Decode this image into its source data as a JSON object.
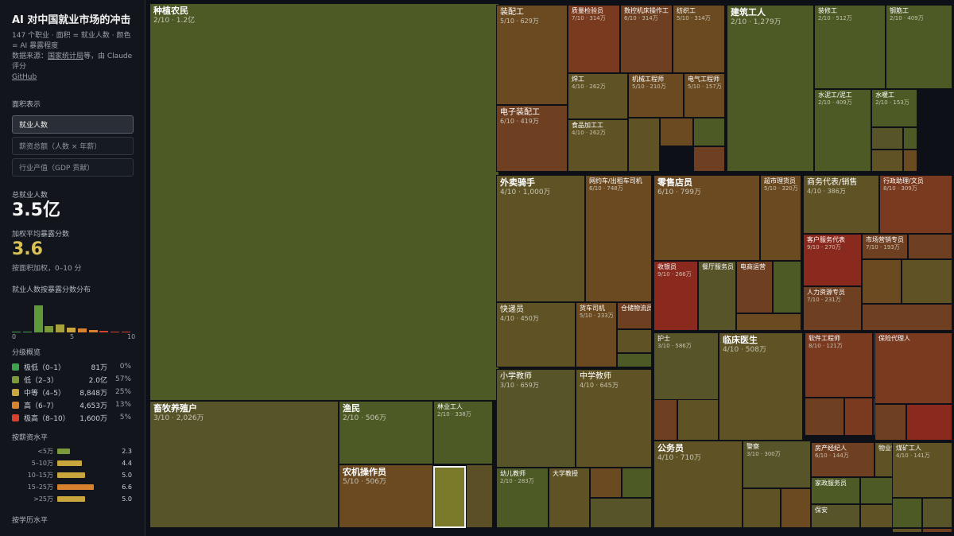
{
  "sidebar": {
    "title": "AI 对中国就业市场的冲击",
    "desc1": "147 个职业 · 面积 = 就业人数 · 颜色 = AI 暴露程度",
    "source_prefix": "数据来源：",
    "source_link": "国家统计局",
    "source_suffix": "等，由 Claude 评分",
    "github": "GitHub",
    "area_label": "面积表示",
    "modes": [
      "就业人数",
      "薪资总额（人数 × 年薪）",
      "行业产值（GDP 贡献）"
    ],
    "total_label": "总就业人数",
    "total_value": "3.5亿",
    "avg_label": "加权平均暴露分数",
    "avg_value": "3.6",
    "avg_note": "按面积加权，0–10 分",
    "hist_label": "就业人数按暴露分数分布",
    "hist_ticks": [
      "0",
      "5",
      "10"
    ],
    "levels_label": "分级概览",
    "levels": [
      {
        "name": "极低（0–1）",
        "count": "81万",
        "pct": "0%",
        "color": "#3fa34d"
      },
      {
        "name": "低（2–3）",
        "count": "2.0亿",
        "pct": "57%",
        "color": "#7a9a3a"
      },
      {
        "name": "中等（4–5）",
        "count": "8,848万",
        "pct": "25%",
        "color": "#c9a63d"
      },
      {
        "name": "高（6–7）",
        "count": "4,653万",
        "pct": "13%",
        "color": "#d8822f"
      },
      {
        "name": "极高（8–10）",
        "count": "1,600万",
        "pct": "5%",
        "color": "#d9412f"
      }
    ],
    "salary_label": "按薪资水平",
    "salary": [
      {
        "label": "<5万",
        "value": "2.3",
        "score": 2.3,
        "color": "#7a9a3a"
      },
      {
        "label": "5–10万",
        "value": "4.4",
        "score": 4.4,
        "color": "#c9a63d"
      },
      {
        "label": "10–15万",
        "value": "5.0",
        "score": 5.0,
        "color": "#c9a63d"
      },
      {
        "label": "15–25万",
        "value": "6.6",
        "score": 6.6,
        "color": "#d8822f"
      },
      {
        "label": ">25万",
        "value": "5.0",
        "score": 5.0,
        "color": "#c9a63d"
      }
    ],
    "edu_label": "按学历水平"
  },
  "histogram": [
    {
      "score": 0,
      "share": 0.002,
      "color": "#3fa34d"
    },
    {
      "score": 1,
      "share": 0.01,
      "color": "#3fa34d"
    },
    {
      "score": 2,
      "share": 0.85,
      "color": "#5f9a3a"
    },
    {
      "score": 3,
      "share": 0.2,
      "color": "#7a9a3a"
    },
    {
      "score": 4,
      "share": 0.24,
      "color": "#a8a03a"
    },
    {
      "score": 5,
      "share": 0.15,
      "color": "#c9a63d"
    },
    {
      "score": 6,
      "share": 0.13,
      "color": "#d8822f"
    },
    {
      "score": 7,
      "share": 0.08,
      "color": "#d8822f"
    },
    {
      "score": 8,
      "share": 0.05,
      "color": "#d9412f"
    },
    {
      "score": 9,
      "share": 0.03,
      "color": "#d9412f"
    },
    {
      "score": 10,
      "share": 0.008,
      "color": "#d9412f"
    }
  ],
  "tiles": [
    {
      "name": "种植农民",
      "meta": "2/10 · 1.2亿",
      "color": "#4d5a25",
      "size": "L"
    },
    {
      "name": "畜牧养殖户",
      "meta": "3/10 · 2,026万",
      "color": "#57542a",
      "size": "L"
    },
    {
      "name": "渔民",
      "meta": "2/10 · 506万",
      "color": "#4d5a25",
      "size": "L"
    },
    {
      "name": "林业工人",
      "meta": "2/10 · 338万",
      "color": "#4d5a25"
    },
    {
      "name": "农机操作员",
      "meta": "5/10 · 506万",
      "color": "#6b4a22",
      "size": "L"
    },
    {
      "name": "",
      "meta": "",
      "color": "#7a7a2a",
      "selected": true
    },
    {
      "name": "",
      "meta": "",
      "color": "#5a4f25"
    },
    {
      "name": "装配工",
      "meta": "5/10 · 629万",
      "color": "#6b4a22",
      "size": "M"
    },
    {
      "name": "质量检验员",
      "meta": "7/10 · 314万",
      "color": "#7a3a1f"
    },
    {
      "name": "数控机床操作工",
      "meta": "6/10 · 314万",
      "color": "#6e3f20"
    },
    {
      "name": "纺织工",
      "meta": "5/10 · 314万",
      "color": "#6b4a22"
    },
    {
      "name": "焊工",
      "meta": "4/10 · 262万",
      "color": "#5f5224"
    },
    {
      "name": "机械工程师",
      "meta": "5/10 · 210万",
      "color": "#6b4a22"
    },
    {
      "name": "电气工程师",
      "meta": "5/10 · 157万",
      "color": "#6b4a22"
    },
    {
      "name": "电子装配工",
      "meta": "6/10 · 419万",
      "color": "#6e3f20",
      "size": "M"
    },
    {
      "name": "食品加工工",
      "meta": "4/10 · 262万",
      "color": "#5f5224"
    },
    {
      "name": "",
      "meta": "",
      "color": "#5f5224"
    },
    {
      "name": "",
      "meta": "",
      "color": "#6b4a22"
    },
    {
      "name": "",
      "meta": "",
      "color": "#4d5a25"
    },
    {
      "name": "",
      "meta": "",
      "color": "#6e3f20"
    },
    {
      "name": "建筑工人",
      "meta": "2/10 · 1,279万",
      "color": "#4d5a25",
      "size": "L"
    },
    {
      "name": "装修工",
      "meta": "2/10 · 512万",
      "color": "#4d5a25"
    },
    {
      "name": "钢筋工",
      "meta": "2/10 · 409万",
      "color": "#4d5a25"
    },
    {
      "name": "水泥工/泥工",
      "meta": "2/10 · 409万",
      "color": "#4d5a25"
    },
    {
      "name": "水暖工",
      "meta": "2/10 · 153万",
      "color": "#4d5a25"
    },
    {
      "name": "",
      "meta": "",
      "color": "#57542a"
    },
    {
      "name": "",
      "meta": "",
      "color": "#4d5a25"
    },
    {
      "name": "",
      "meta": "",
      "color": "#5f5224"
    },
    {
      "name": "",
      "meta": "",
      "color": "#6b4a22"
    },
    {
      "name": "外卖骑手",
      "meta": "4/10 · 1,000万",
      "color": "#5f5224",
      "size": "L"
    },
    {
      "name": "网约车/出租车司机",
      "meta": "6/10 · 748万",
      "color": "#6b4a22"
    },
    {
      "name": "快递员",
      "meta": "4/10 · 450万",
      "color": "#5f5224",
      "size": "M"
    },
    {
      "name": "货车司机",
      "meta": "5/10 · 233万",
      "color": "#6b4a22"
    },
    {
      "name": "仓储物流员",
      "meta": "",
      "color": "#6e3f20"
    },
    {
      "name": "",
      "meta": "",
      "color": "#5f5224"
    },
    {
      "name": "",
      "meta": "",
      "color": "#4d5a25"
    },
    {
      "name": "零售店员",
      "meta": "6/10 · 799万",
      "color": "#6b4a22",
      "size": "L"
    },
    {
      "name": "超市理货员",
      "meta": "5/10 · 320万",
      "color": "#6b4a22"
    },
    {
      "name": "收银员",
      "meta": "9/10 · 266万",
      "color": "#8a2a1e"
    },
    {
      "name": "餐厅服务员",
      "meta": "",
      "color": "#57542a"
    },
    {
      "name": "电商运营",
      "meta": "",
      "color": "#6e3f20"
    },
    {
      "name": "",
      "meta": "",
      "color": "#4d5a25"
    },
    {
      "name": "",
      "meta": "",
      "color": "#6b4a22"
    },
    {
      "name": "商务代表/销售",
      "meta": "4/10 · 386万",
      "color": "#5f5224",
      "size": "M"
    },
    {
      "name": "行政助理/文员",
      "meta": "8/10 · 309万",
      "color": "#7a3a1f"
    },
    {
      "name": "客户服务代表",
      "meta": "9/10 · 270万",
      "color": "#8a2a1e"
    },
    {
      "name": "市场营销专员",
      "meta": "7/10 · 193万",
      "color": "#6e3f20"
    },
    {
      "name": "",
      "meta": "",
      "color": "#6e3f20"
    },
    {
      "name": "人力资源专员",
      "meta": "7/10 · 231万",
      "color": "#6e3f20"
    },
    {
      "name": "",
      "meta": "",
      "color": "#6b4a22"
    },
    {
      "name": "",
      "meta": "",
      "color": "#5f5224"
    },
    {
      "name": "",
      "meta": "",
      "color": "#6e3f20"
    },
    {
      "name": "小学教师",
      "meta": "3/10 · 659万",
      "color": "#57542a",
      "size": "M"
    },
    {
      "name": "中学教师",
      "meta": "4/10 · 645万",
      "color": "#5f5224",
      "size": "M"
    },
    {
      "name": "幼儿教师",
      "meta": "2/10 · 283万",
      "color": "#4d5a25"
    },
    {
      "name": "大学教授",
      "meta": "",
      "color": "#5f5224"
    },
    {
      "name": "",
      "meta": "",
      "color": "#6b4a22"
    },
    {
      "name": "",
      "meta": "",
      "color": "#4d5a25"
    },
    {
      "name": "",
      "meta": "",
      "color": "#57542a"
    },
    {
      "name": "护士",
      "meta": "3/10 · 586万",
      "color": "#57542a"
    },
    {
      "name": "临床医生",
      "meta": "4/10 · 508万",
      "color": "#5f5224",
      "size": "L"
    },
    {
      "name": "",
      "meta": "",
      "color": "#6b4a22"
    },
    {
      "name": "",
      "meta": "",
      "color": "#4d5a25"
    },
    {
      "name": "",
      "meta": "",
      "color": "#6e3f20"
    },
    {
      "name": "",
      "meta": "",
      "color": "#5f5224"
    },
    {
      "name": "软件工程师",
      "meta": "8/10 · 121万",
      "color": "#7a3a1f"
    },
    {
      "name": "",
      "meta": "",
      "color": "#8a2a1e"
    },
    {
      "name": "",
      "meta": "",
      "color": "#6e3f20"
    },
    {
      "name": "",
      "meta": "",
      "color": "#7a3a1f"
    },
    {
      "name": "",
      "meta": "",
      "color": "#6b4a22"
    },
    {
      "name": "保险代理人",
      "meta": "",
      "color": "#7a3a1f"
    },
    {
      "name": "",
      "meta": "",
      "color": "#8a2a1e"
    },
    {
      "name": "",
      "meta": "",
      "color": "#6e3f20"
    },
    {
      "name": "公务员",
      "meta": "4/10 · 710万",
      "color": "#5f5224",
      "size": "L"
    },
    {
      "name": "警察",
      "meta": "3/10 · 300万",
      "color": "#57542a"
    },
    {
      "name": "",
      "meta": "",
      "color": "#5f5224"
    },
    {
      "name": "",
      "meta": "",
      "color": "#6b4a22"
    },
    {
      "name": "",
      "meta": "",
      "color": "#4d5a25"
    },
    {
      "name": "",
      "meta": "",
      "color": "#57542a"
    },
    {
      "name": "房产经纪人",
      "meta": "6/10 · 144万",
      "color": "#6e3f20"
    },
    {
      "name": "物业管理员",
      "meta": "",
      "color": "#5f5224"
    },
    {
      "name": "家政服务员",
      "meta": "",
      "color": "#4d5a25"
    },
    {
      "name": "保安",
      "meta": "",
      "color": "#57542a"
    },
    {
      "name": "",
      "meta": "",
      "color": "#4d5a25"
    },
    {
      "name": "",
      "meta": "",
      "color": "#5f5224"
    },
    {
      "name": "煤矿工人",
      "meta": "4/10 · 141万",
      "color": "#5f5224"
    },
    {
      "name": "",
      "meta": "",
      "color": "#4d5a25"
    },
    {
      "name": "",
      "meta": "",
      "color": "#57542a"
    },
    {
      "name": "",
      "meta": "",
      "color": "#6b4a22"
    },
    {
      "name": "",
      "meta": "",
      "color": "#5f5224"
    },
    {
      "name": "",
      "meta": "",
      "color": "#6e3f20"
    }
  ]
}
